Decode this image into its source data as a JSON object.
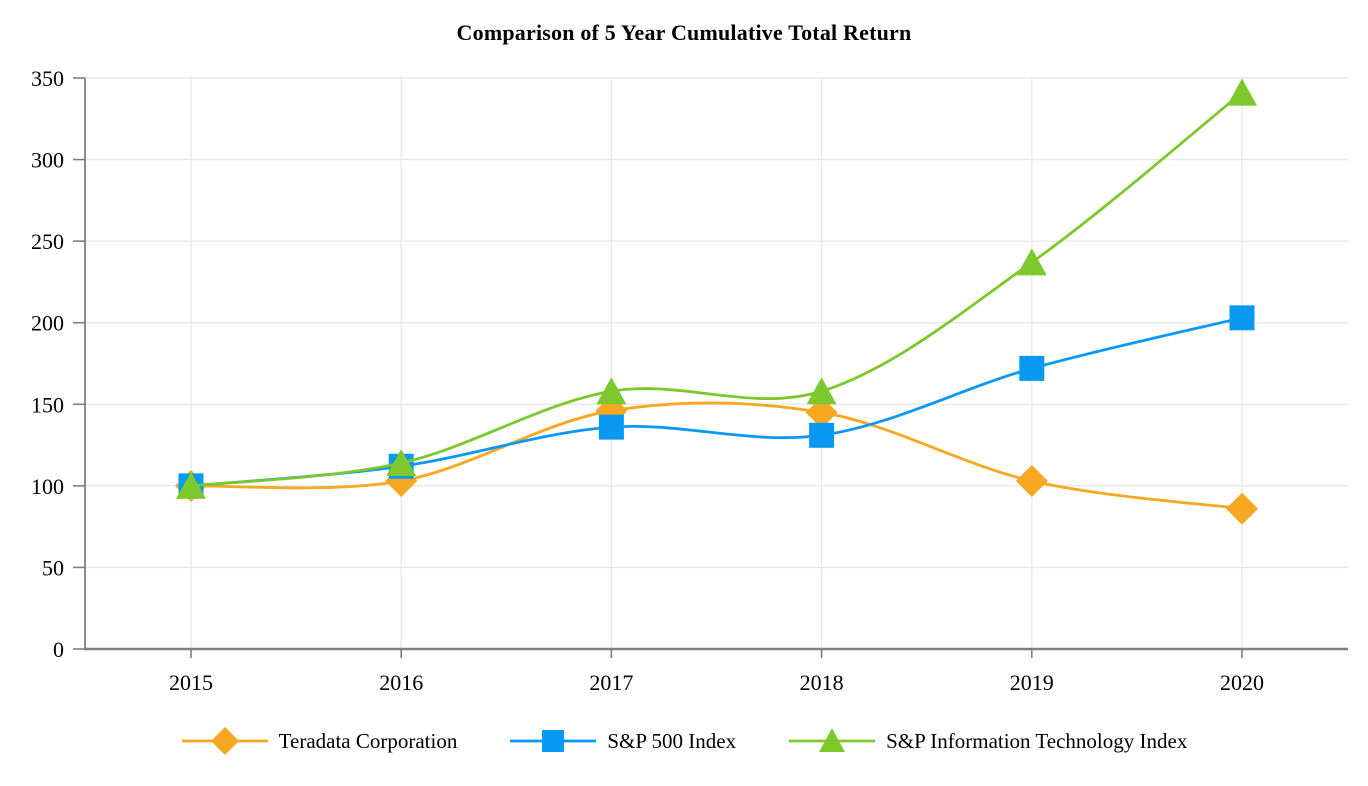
{
  "chart_data": {
    "type": "line",
    "title": "Comparison of 5 Year Cumulative Total Return",
    "categories": [
      "2015",
      "2016",
      "2017",
      "2018",
      "2019",
      "2020"
    ],
    "series": [
      {
        "name": "Teradata Corporation",
        "marker": "diamond",
        "color": "#F7A823",
        "values": [
          100,
          103,
          146,
          145,
          103,
          86
        ]
      },
      {
        "name": "S&P 500 Index",
        "marker": "square",
        "color": "#0999F5",
        "values": [
          100,
          112,
          136,
          131,
          172,
          203
        ]
      },
      {
        "name": "S&P Information Technology Index",
        "marker": "triangle",
        "color": "#7DC82D",
        "values": [
          100,
          114,
          158,
          158,
          237,
          341
        ]
      }
    ],
    "xlabel": "",
    "ylabel": "",
    "ylim": [
      0,
      350
    ],
    "ytick_step": 50,
    "yticks": [
      "0",
      "50",
      "100",
      "150",
      "200",
      "250",
      "300",
      "350"
    ],
    "grid": true,
    "legend_position": "bottom",
    "line_style": "smooth",
    "axis_color": "#7F7F7F",
    "grid_color": "#E8E8E8",
    "background_color": "#FFFFFF",
    "text_color": "#000000"
  }
}
